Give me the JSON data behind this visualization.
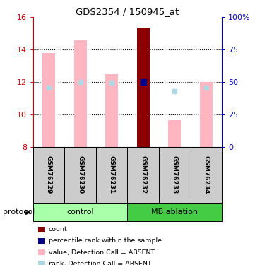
{
  "title": "GDS2354 / 150945_at",
  "samples": [
    "GSM76229",
    "GSM76230",
    "GSM76231",
    "GSM76232",
    "GSM76233",
    "GSM76234"
  ],
  "ylim_left": [
    8,
    16
  ],
  "ylim_right": [
    0,
    100
  ],
  "yticks_left": [
    8,
    10,
    12,
    14,
    16
  ],
  "yticks_right": [
    0,
    25,
    50,
    75,
    100
  ],
  "ytick_labels_right": [
    "0",
    "25",
    "50",
    "75",
    "100%"
  ],
  "bar_bottom": 8,
  "pink_bars": [
    13.8,
    14.6,
    12.5,
    15.35,
    9.65,
    12.0
  ],
  "is_dark_red": [
    false,
    false,
    false,
    true,
    false,
    false
  ],
  "blue_squares_y": [
    11.65,
    12.0,
    11.95,
    12.0,
    11.45,
    11.65
  ],
  "blue_squares_dark": [
    false,
    false,
    false,
    true,
    false,
    false
  ],
  "bar_color_pink": "#FFB6C1",
  "bar_color_darkred": "#8B0000",
  "square_color_blue_dark": "#00008B",
  "square_color_blue_light": "#ADD8E6",
  "left_axis_color": "#CC0000",
  "right_axis_color": "#0000CC",
  "sample_bg_color": "#CCCCCC",
  "control_color": "#AAFFAA",
  "mb_color": "#44CC44",
  "legend_items": [
    {
      "color": "#8B0000",
      "label": "count"
    },
    {
      "color": "#00008B",
      "label": "percentile rank within the sample"
    },
    {
      "color": "#FFB6C1",
      "label": "value, Detection Call = ABSENT"
    },
    {
      "color": "#ADD8E6",
      "label": "rank, Detection Call = ABSENT"
    }
  ]
}
